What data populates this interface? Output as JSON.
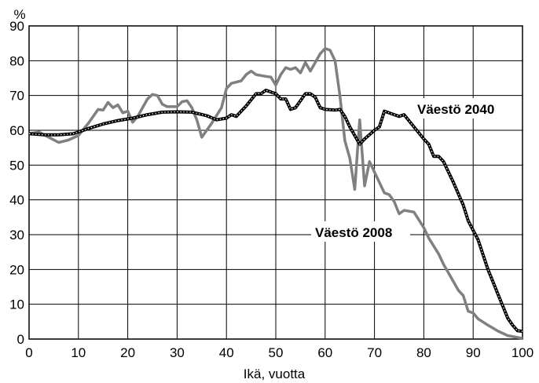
{
  "chart_data": {
    "type": "line",
    "ylabel": "%",
    "xlabel": "Ikä, vuotta",
    "xlim": [
      0,
      100
    ],
    "ylim": [
      0,
      90
    ],
    "x_ticks": [
      0,
      10,
      20,
      30,
      40,
      50,
      60,
      70,
      80,
      90,
      100
    ],
    "y_ticks": [
      0,
      10,
      20,
      30,
      40,
      50,
      60,
      70,
      80,
      90
    ],
    "grid": true,
    "series": [
      {
        "name": "Väestö 2008",
        "color": "#808080",
        "points": [
          [
            0,
            59
          ],
          [
            2,
            59.5
          ],
          [
            4,
            58
          ],
          [
            6,
            56.5
          ],
          [
            8,
            57.2
          ],
          [
            10,
            58.5
          ],
          [
            12,
            62
          ],
          [
            14,
            66
          ],
          [
            15,
            65.8
          ],
          [
            16,
            68
          ],
          [
            17,
            66.5
          ],
          [
            18,
            67.3
          ],
          [
            19,
            65
          ],
          [
            20,
            65.5
          ],
          [
            21,
            62.3
          ],
          [
            22,
            64
          ],
          [
            24,
            69
          ],
          [
            25,
            70.3
          ],
          [
            26,
            70
          ],
          [
            27,
            67.5
          ],
          [
            28,
            66.8
          ],
          [
            30,
            66.8
          ],
          [
            31,
            68.2
          ],
          [
            32,
            68.5
          ],
          [
            33,
            66.5
          ],
          [
            34,
            63
          ],
          [
            35,
            58
          ],
          [
            37,
            62
          ],
          [
            39,
            66.5
          ],
          [
            40,
            72
          ],
          [
            41,
            73.5
          ],
          [
            43,
            74.2
          ],
          [
            44,
            76
          ],
          [
            45,
            77
          ],
          [
            46,
            76
          ],
          [
            48,
            75.5
          ],
          [
            49,
            75.3
          ],
          [
            50,
            73
          ],
          [
            51,
            76
          ],
          [
            52,
            78
          ],
          [
            53,
            77.5
          ],
          [
            54,
            78
          ],
          [
            55,
            76.5
          ],
          [
            56,
            79.5
          ],
          [
            57,
            77
          ],
          [
            59,
            82
          ],
          [
            60,
            83.5
          ],
          [
            61,
            83
          ],
          [
            62,
            80
          ],
          [
            63,
            70
          ],
          [
            64,
            57
          ],
          [
            65,
            52
          ],
          [
            66,
            43
          ],
          [
            67,
            63
          ],
          [
            68,
            44
          ],
          [
            69,
            51
          ],
          [
            70,
            48
          ],
          [
            71,
            45
          ],
          [
            72,
            42
          ],
          [
            73,
            41.5
          ],
          [
            74,
            39.5
          ],
          [
            75,
            36
          ],
          [
            76,
            37
          ],
          [
            78,
            36.5
          ],
          [
            80,
            32
          ],
          [
            81,
            29
          ],
          [
            83,
            24.5
          ],
          [
            84,
            21.5
          ],
          [
            86,
            16.5
          ],
          [
            87,
            14
          ],
          [
            88,
            12.5
          ],
          [
            89,
            8
          ],
          [
            90,
            7.5
          ],
          [
            91,
            5.8
          ],
          [
            93,
            4
          ],
          [
            95,
            2.3
          ],
          [
            97,
            1
          ],
          [
            100,
            0.2
          ]
        ]
      },
      {
        "name": "Väestö 2040",
        "color": "#000000",
        "points": [
          [
            0,
            59
          ],
          [
            3,
            58.7
          ],
          [
            6,
            58.7
          ],
          [
            9,
            59
          ],
          [
            12,
            60.5
          ],
          [
            15,
            61.8
          ],
          [
            18,
            62.8
          ],
          [
            21,
            63.5
          ],
          [
            24,
            64.5
          ],
          [
            27,
            65.2
          ],
          [
            30,
            65.3
          ],
          [
            33,
            65.2
          ],
          [
            36,
            64.2
          ],
          [
            38,
            63
          ],
          [
            40,
            63.5
          ],
          [
            41,
            64.5
          ],
          [
            42,
            64
          ],
          [
            44,
            67
          ],
          [
            46,
            70.5
          ],
          [
            47,
            70.5
          ],
          [
            48,
            71.5
          ],
          [
            49,
            71
          ],
          [
            50,
            70.5
          ],
          [
            51,
            69
          ],
          [
            52,
            69
          ],
          [
            53,
            66
          ],
          [
            54,
            66.5
          ],
          [
            56,
            70.5
          ],
          [
            57,
            70.5
          ],
          [
            58,
            69.5
          ],
          [
            59,
            66.5
          ],
          [
            60,
            66
          ],
          [
            62,
            65.8
          ],
          [
            63,
            66
          ],
          [
            64,
            64
          ],
          [
            65,
            61
          ],
          [
            67,
            56
          ],
          [
            68,
            57.5
          ],
          [
            70,
            60
          ],
          [
            71,
            61
          ],
          [
            72,
            65.5
          ],
          [
            74,
            64.5
          ],
          [
            75,
            64
          ],
          [
            76,
            64.5
          ],
          [
            78,
            61
          ],
          [
            80,
            57.5
          ],
          [
            81,
            56
          ],
          [
            82,
            52.5
          ],
          [
            83,
            52.5
          ],
          [
            84,
            51
          ],
          [
            86,
            45
          ],
          [
            88,
            38.5
          ],
          [
            89,
            34
          ],
          [
            91,
            28.5
          ],
          [
            93,
            20
          ],
          [
            95,
            13
          ],
          [
            97,
            6
          ],
          [
            98,
            4
          ],
          [
            99,
            2.4
          ],
          [
            100,
            2.2
          ]
        ]
      }
    ],
    "annotations": [
      "Väestö 2040",
      "Väestö 2008"
    ]
  }
}
